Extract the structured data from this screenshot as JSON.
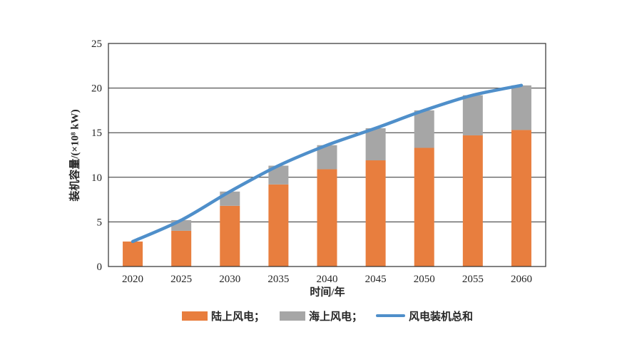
{
  "chart_data": {
    "type": "bar",
    "subtype": "stacked-bars-with-line-overlay",
    "title": "",
    "xlabel": "时间/年",
    "ylabel": "装机容量/(×10⁸ kW)",
    "categories": [
      "2020",
      "2025",
      "2030",
      "2035",
      "2040",
      "2045",
      "2050",
      "2055",
      "2060"
    ],
    "series": [
      {
        "name": "陆上风电",
        "type": "bar",
        "color": "#E87E3E",
        "values": [
          2.8,
          4.0,
          6.8,
          9.2,
          10.9,
          11.9,
          13.3,
          14.7,
          15.3
        ]
      },
      {
        "name": "海上风电",
        "type": "bar",
        "color": "#A6A6A6",
        "values": [
          0.0,
          1.2,
          1.6,
          2.1,
          2.7,
          3.6,
          4.2,
          4.5,
          5.0
        ]
      },
      {
        "name": "风电装机总和",
        "type": "line",
        "color": "#4F8FCA",
        "values": [
          2.8,
          5.2,
          8.4,
          11.3,
          13.6,
          15.5,
          17.5,
          19.2,
          20.3
        ]
      }
    ],
    "ylim": [
      0,
      25
    ],
    "yticks": [
      0,
      5,
      10,
      15,
      20,
      25
    ],
    "grid": "horizontal",
    "plot_border": true,
    "legend_position": "bottom"
  },
  "axes": {
    "xlabel": "时间/年",
    "ylabel": "装机容量/(×10⁸ kW)"
  },
  "legend": {
    "items": [
      {
        "label": "陆上风电；",
        "swatch": "orange-rect",
        "color": "#E87E3E"
      },
      {
        "label": "海上风电；",
        "swatch": "gray-rect",
        "color": "#A6A6A6"
      },
      {
        "label": "风电装机总和",
        "swatch": "blue-line",
        "color": "#4F8FCA"
      }
    ]
  },
  "style": {
    "background": "#ffffff",
    "grid_color": "#2f2f2f",
    "text_color": "#262626"
  }
}
